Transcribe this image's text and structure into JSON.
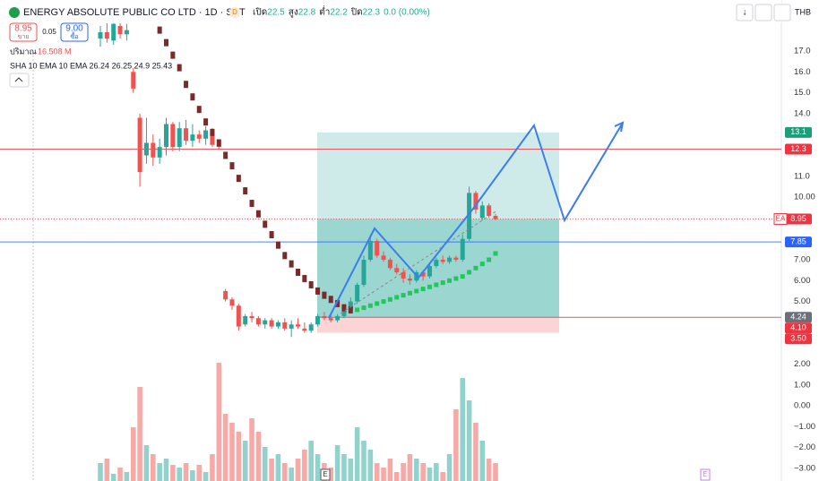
{
  "header": {
    "title": "ENERGY ABSOLUTE PUBLIC CO LTD · 1D · SET",
    "badge": "D",
    "ohlc": [
      {
        "label": "เปิด",
        "value": "22.5"
      },
      {
        "label": "สูง",
        "value": "22.8"
      },
      {
        "label": "ต่ำ",
        "value": "22.2"
      },
      {
        "label": "ปิด",
        "value": "22.3"
      },
      {
        "label": "",
        "value": "0.0 (0.00%)"
      }
    ],
    "sell": {
      "price": "8.95",
      "label": "ขาย"
    },
    "spread": "0.05",
    "buy": {
      "price": "9.00",
      "label": "ซื้อ"
    },
    "volume": {
      "label": "ปริมาณ",
      "value": "16.508 M"
    },
    "indicators": "SHA 10 EMA 10 EMA 26.24 26.25 24.9 25.43",
    "currency": "THB"
  },
  "events": [
    "E",
    "E"
  ],
  "chart_data": {
    "type": "candlestick",
    "up_color": "#26a69a",
    "down_color": "#ef5350",
    "open": [
      17.6,
      17.9,
      17.5,
      18.2,
      17.8,
      16.0,
      13.8,
      12.0,
      12.6,
      11.9,
      12.4,
      13.5,
      12.4,
      13.3,
      12.7,
      13.0,
      12.8,
      13.2,
      12.5,
      5.5,
      5.1,
      4.8,
      3.9,
      4.3,
      4.2,
      3.9,
      4.1,
      3.8,
      4.0,
      3.7,
      3.9,
      3.7,
      3.6,
      3.9,
      4.3,
      4.2,
      4.1,
      4.3,
      4.6,
      5.0,
      5.8,
      7.0,
      7.9,
      7.2,
      7.0,
      6.6,
      6.4,
      6.1,
      6.0,
      6.4,
      6.2,
      6.7,
      7.0,
      6.9,
      7.1,
      7.0,
      8.0,
      10.2,
      9.0,
      9.6,
      9.1
    ],
    "high": [
      18.2,
      18.4,
      18.6,
      18.5,
      18.3,
      16.2,
      14.0,
      13.8,
      13.0,
      12.8,
      13.8,
      13.6,
      13.6,
      13.7,
      13.5,
      13.2,
      13.4,
      13.3,
      12.7,
      5.6,
      5.2,
      4.9,
      4.4,
      4.5,
      4.3,
      4.2,
      4.2,
      4.1,
      4.2,
      4.1,
      4.2,
      4.0,
      4.0,
      4.4,
      4.5,
      4.4,
      4.4,
      4.7,
      5.2,
      5.9,
      7.2,
      8.2,
      8.0,
      7.4,
      7.1,
      6.8,
      6.6,
      6.3,
      6.5,
      6.5,
      6.8,
      7.1,
      7.2,
      7.2,
      7.2,
      8.2,
      10.5,
      10.3,
      9.8,
      9.7,
      9.2
    ],
    "low": [
      17.2,
      17.4,
      17.3,
      17.6,
      17.5,
      15.0,
      10.5,
      11.6,
      11.5,
      11.6,
      12.0,
      12.2,
      12.2,
      12.5,
      12.4,
      12.6,
      12.5,
      12.4,
      12.3,
      5.0,
      4.6,
      3.6,
      3.8,
      4.0,
      3.8,
      3.7,
      3.7,
      3.7,
      3.6,
      3.3,
      3.7,
      3.5,
      3.5,
      3.8,
      4.1,
      4.0,
      4.0,
      4.2,
      4.5,
      4.9,
      5.7,
      6.9,
      7.1,
      6.9,
      6.5,
      6.3,
      5.9,
      5.8,
      5.9,
      6.0,
      6.1,
      6.6,
      6.8,
      6.8,
      6.9,
      6.9,
      7.9,
      9.2,
      8.9,
      9.0,
      8.9
    ],
    "close": [
      17.9,
      17.6,
      18.3,
      17.8,
      18.0,
      15.2,
      11.2,
      12.6,
      11.9,
      12.4,
      13.5,
      12.4,
      13.3,
      12.7,
      13.0,
      12.8,
      13.2,
      12.5,
      12.4,
      5.1,
      4.8,
      3.8,
      4.3,
      4.2,
      3.9,
      4.1,
      3.8,
      4.0,
      3.7,
      3.9,
      3.8,
      3.6,
      3.9,
      4.3,
      4.2,
      4.1,
      4.3,
      4.6,
      5.0,
      5.8,
      7.0,
      7.9,
      7.2,
      7.0,
      6.6,
      6.4,
      6.1,
      6.0,
      6.4,
      6.2,
      6.7,
      7.0,
      6.9,
      7.1,
      7.0,
      8.0,
      10.2,
      9.4,
      9.6,
      9.1,
      8.95
    ],
    "volume": [
      20,
      25,
      8,
      15,
      10,
      60,
      105,
      40,
      30,
      20,
      25,
      18,
      15,
      20,
      12,
      18,
      10,
      30,
      132,
      75,
      65,
      55,
      45,
      70,
      55,
      38,
      25,
      30,
      20,
      15,
      25,
      35,
      45,
      30,
      20,
      15,
      40,
      30,
      25,
      60,
      45,
      35,
      20,
      15,
      25,
      10,
      20,
      30,
      25,
      20,
      15,
      20,
      10,
      30,
      80,
      115,
      90,
      65,
      45,
      25,
      20
    ],
    "sha": {
      "color": "#7b2a2a",
      "values": [
        null,
        null,
        null,
        null,
        null,
        null,
        null,
        null,
        null,
        18.0,
        17.4,
        16.8,
        16.2,
        15.4,
        14.8,
        14.2,
        13.6,
        13.1,
        12.6,
        12.0,
        11.5,
        10.9,
        10.3,
        9.7,
        9.2,
        8.7,
        8.2,
        7.7,
        7.2,
        6.8,
        6.4,
        6.1,
        5.8,
        5.5,
        5.3,
        5.1,
        4.9,
        4.7,
        4.6,
        null,
        null,
        null,
        null,
        null,
        null,
        null,
        null,
        null,
        null,
        null,
        null,
        null,
        null,
        null,
        null,
        null,
        null,
        null,
        null,
        null,
        null
      ]
    },
    "ema": {
      "color": "#22c55e",
      "values": [
        null,
        null,
        null,
        null,
        null,
        null,
        null,
        null,
        null,
        null,
        null,
        null,
        null,
        null,
        null,
        null,
        null,
        null,
        null,
        null,
        null,
        null,
        null,
        null,
        null,
        null,
        null,
        null,
        null,
        null,
        null,
        null,
        null,
        null,
        null,
        null,
        null,
        null,
        null,
        4.6,
        4.7,
        4.8,
        4.9,
        5.0,
        5.1,
        5.2,
        5.3,
        5.4,
        5.5,
        5.6,
        5.7,
        5.8,
        5.9,
        6.0,
        6.1,
        6.2,
        6.4,
        6.6,
        6.8,
        7.0,
        7.3
      ]
    },
    "ylim": [
      -3.9,
      19.1
    ],
    "yticks": [
      {
        "value": 17,
        "label": "17.0"
      },
      {
        "value": 16,
        "label": "16.0"
      },
      {
        "value": 15,
        "label": "15.0"
      },
      {
        "value": 14,
        "label": "14.0"
      },
      {
        "value": 11,
        "label": "11.0"
      },
      {
        "value": 10,
        "label": "10.00"
      },
      {
        "value": 7,
        "label": "7.00"
      },
      {
        "value": 6,
        "label": "6.00"
      },
      {
        "value": 5,
        "label": "5.00"
      },
      {
        "value": 2,
        "label": "2.00"
      },
      {
        "value": 1,
        "label": "1.00"
      },
      {
        "value": 0,
        "label": "0.00"
      },
      {
        "value": -1,
        "label": "−1.00"
      },
      {
        "value": -2,
        "label": "−2.00"
      },
      {
        "value": -3,
        "label": "−3.00"
      }
    ],
    "tags": [
      {
        "value": 13.1,
        "color": "#1e9e78"
      },
      {
        "value": 12.3,
        "color": "#ef3340",
        "line": "solid"
      },
      {
        "value": 8.95,
        "name": "EA",
        "color": "#ef3340",
        "line": "dotted"
      },
      {
        "value": 7.85,
        "color": "#2962ff",
        "line": "solid"
      },
      {
        "value": 4.24,
        "color": "#6b6f78"
      },
      {
        "value": 4.1,
        "label": "4.10",
        "color": "#ef3340"
      },
      {
        "value": 3.5,
        "label": "3.50",
        "color": "#ef3340"
      }
    ]
  }
}
